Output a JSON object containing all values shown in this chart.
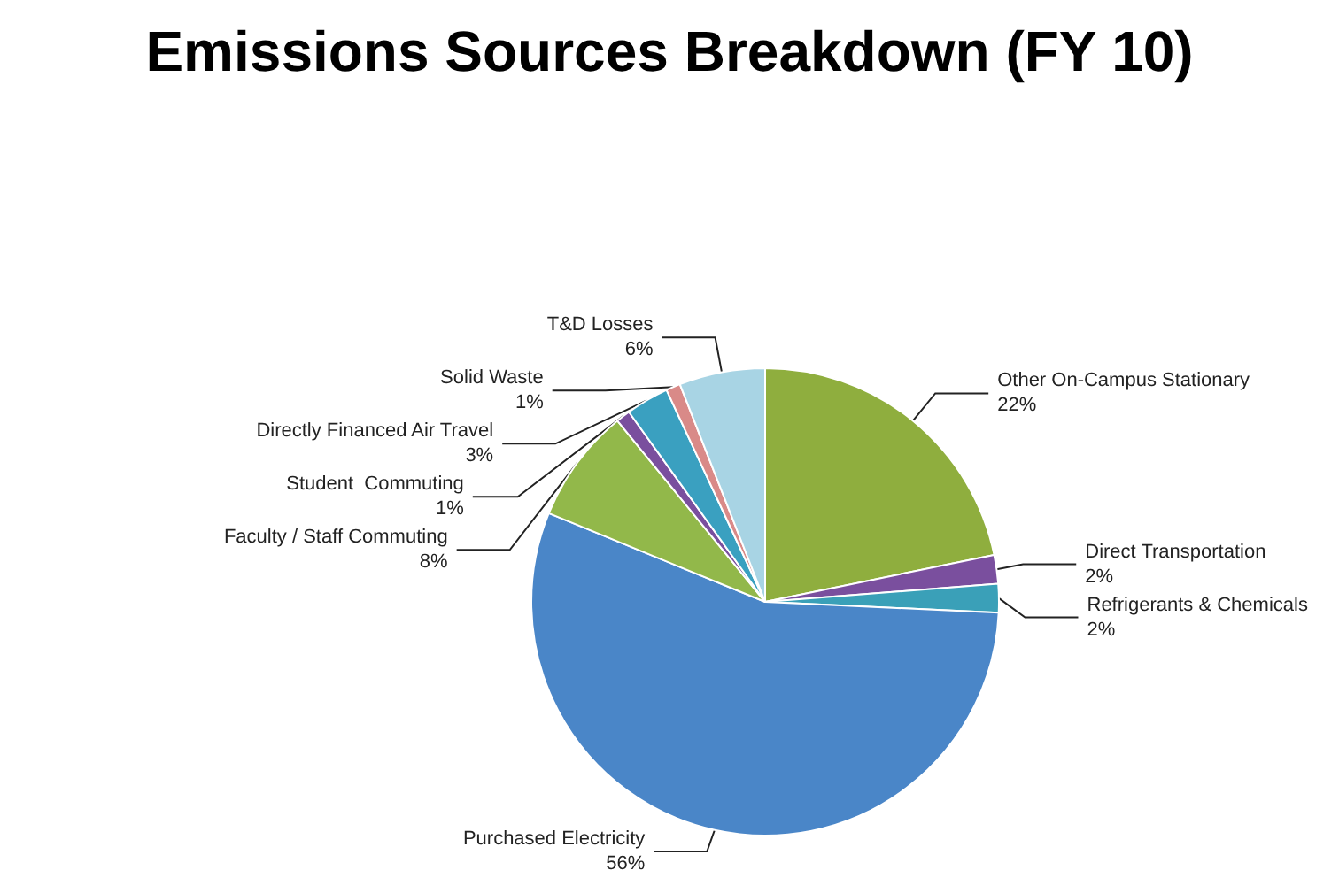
{
  "chart_data": {
    "type": "pie",
    "title": "Emissions Sources Breakdown (FY 10)",
    "categories": [
      "Other On-Campus Stationary",
      "Direct Transportation",
      "Refrigerants & Chemicals",
      "Purchased Electricity",
      "Faculty / Staff Commuting",
      "Student  Commuting",
      "Directly Financed Air Travel",
      "Solid Waste",
      "T&D Losses"
    ],
    "values": [
      22,
      2,
      2,
      56,
      8,
      1,
      3,
      1,
      6
    ],
    "value_labels": [
      "22%",
      "2%",
      "2%",
      "56%",
      "8%",
      "1%",
      "3%",
      "1%",
      "6%"
    ],
    "colors": [
      "#8fae3e",
      "#7a4f9e",
      "#3aa0b8",
      "#4a86c8",
      "#92b84a",
      "#7a4f9e",
      "#3aa0c0",
      "#d98a88",
      "#a8d4e4"
    ],
    "legend": false
  }
}
